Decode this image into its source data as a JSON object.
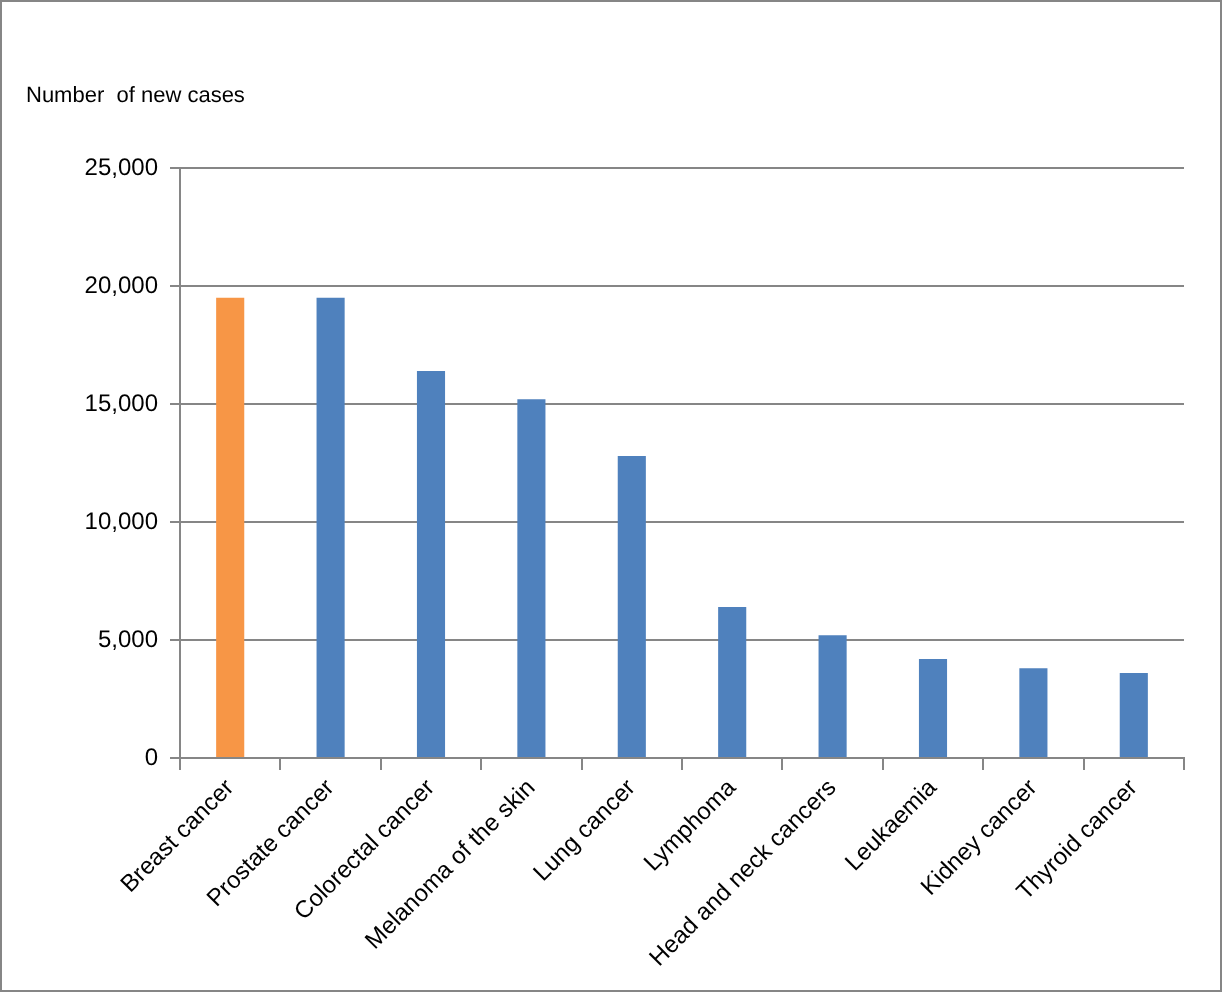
{
  "chart_data": {
    "type": "bar",
    "ylabel": "Number  of new cases",
    "categories": [
      "Breast cancer",
      "Prostate cancer",
      "Colorectal cancer",
      "Melanoma of the skin",
      "Lung cancer",
      "Lymphoma",
      "Head and neck cancers",
      "Leukaemia",
      "Kidney cancer",
      "Thyroid cancer"
    ],
    "values": [
      19500,
      19500,
      16400,
      15200,
      12800,
      6400,
      5200,
      4200,
      3800,
      3600
    ],
    "colors": [
      "#f79646",
      "#4f81bd",
      "#4f81bd",
      "#4f81bd",
      "#4f81bd",
      "#4f81bd",
      "#4f81bd",
      "#4f81bd",
      "#4f81bd",
      "#4f81bd"
    ],
    "ylim": [
      0,
      25000
    ],
    "yticks": [
      0,
      {
        "value": 5000,
        "label": "5,000"
      },
      {
        "value": 10000,
        "label": "10,000"
      },
      {
        "value": 15000,
        "label": "15,000"
      },
      {
        "value": 20000,
        "label": "20,000"
      },
      {
        "value": 25000,
        "label": "25,000"
      }
    ],
    "grid": "y"
  }
}
